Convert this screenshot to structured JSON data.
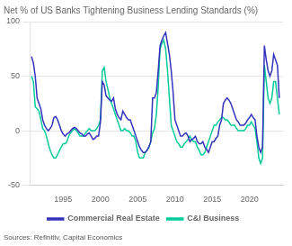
{
  "chart_data": {
    "type": "line",
    "title": "Net % of US Banks Tightening Business Lending Standards (%)",
    "annotations": [
      "Sources: Refinitiv, Capital Economics"
    ],
    "x": [
      1990.75,
      1991.0,
      1991.25,
      1991.5,
      1991.75,
      1992.0,
      1992.25,
      1992.5,
      1992.75,
      1993.0,
      1993.25,
      1993.5,
      1993.75,
      1994.0,
      1994.25,
      1994.5,
      1994.75,
      1995.0,
      1995.25,
      1995.5,
      1995.75,
      1996.0,
      1996.25,
      1996.5,
      1996.75,
      1997.0,
      1997.25,
      1997.5,
      1997.75,
      1998.0,
      1998.25,
      1998.5,
      1998.75,
      1999.0,
      1999.25,
      1999.5,
      1999.75,
      2000.0,
      2000.25,
      2000.5,
      2000.75,
      2001.0,
      2001.25,
      2001.5,
      2001.75,
      2002.0,
      2002.25,
      2002.5,
      2002.75,
      2003.0,
      2003.25,
      2003.5,
      2003.75,
      2004.0,
      2004.25,
      2004.5,
      2004.75,
      2005.0,
      2005.25,
      2005.5,
      2005.75,
      2006.0,
      2006.25,
      2006.5,
      2006.75,
      2007.0,
      2007.25,
      2007.5,
      2007.75,
      2008.0,
      2008.25,
      2008.5,
      2008.75,
      2009.0,
      2009.25,
      2009.5,
      2009.75,
      2010.0,
      2010.25,
      2010.5,
      2010.75,
      2011.0,
      2011.25,
      2011.5,
      2011.75,
      2012.0,
      2012.25,
      2012.5,
      2012.75,
      2013.0,
      2013.25,
      2013.5,
      2013.75,
      2014.0,
      2014.25,
      2014.5,
      2014.75,
      2015.0,
      2015.25,
      2015.5,
      2015.75,
      2016.0,
      2016.25,
      2016.5,
      2016.75,
      2017.0,
      2017.25,
      2017.5,
      2017.75,
      2018.0,
      2018.25,
      2018.5,
      2018.75,
      2019.0,
      2019.25,
      2019.5,
      2019.75,
      2020.0,
      2020.25,
      2020.5,
      2020.75,
      2021.0,
      2021.25,
      2021.5,
      2021.75,
      2022.0,
      2022.25,
      2022.5,
      2022.75,
      2023.0,
      2023.25,
      2023.5,
      2023.75,
      2024.0
    ],
    "series": [
      {
        "name": "Commercial Real Estate",
        "color": "#3333bb",
        "values": [
          68,
          62,
          50,
          30,
          25,
          20,
          10,
          5,
          2,
          0,
          2,
          5,
          12,
          13,
          10,
          5,
          0,
          -3,
          -5,
          -3,
          -2,
          0,
          2,
          3,
          2,
          0,
          -2,
          -3,
          -5,
          -5,
          -3,
          -2,
          -5,
          -8,
          -7,
          -5,
          -5,
          8,
          45,
          42,
          32,
          30,
          28,
          27,
          30,
          20,
          15,
          12,
          10,
          18,
          15,
          12,
          10,
          10,
          5,
          0,
          -5,
          -10,
          -15,
          -18,
          -20,
          -20,
          -18,
          -15,
          -10,
          30,
          30,
          35,
          55,
          78,
          83,
          87,
          90,
          80,
          70,
          55,
          35,
          10,
          5,
          0,
          -5,
          -5,
          -3,
          -2,
          -5,
          -10,
          -8,
          -7,
          -5,
          -10,
          -12,
          -12,
          -10,
          -15,
          -17,
          -20,
          -15,
          -10,
          -10,
          -7,
          -5,
          5,
          10,
          25,
          28,
          30,
          28,
          25,
          20,
          15,
          10,
          8,
          5,
          5,
          5,
          7,
          10,
          12,
          15,
          12,
          10,
          -5,
          -15,
          -20,
          -15,
          78,
          65,
          55,
          50,
          55,
          70,
          65,
          60,
          30
        ]
      },
      {
        "name": "C&I Business",
        "color": "#00cc99",
        "values": [
          50,
          45,
          22,
          20,
          18,
          10,
          2,
          0,
          -5,
          -12,
          -18,
          -22,
          -25,
          -25,
          -22,
          -18,
          -15,
          -12,
          -12,
          -10,
          -5,
          -2,
          0,
          2,
          0,
          -2,
          -5,
          -5,
          -5,
          -2,
          0,
          2,
          0,
          0,
          0,
          2,
          5,
          10,
          55,
          58,
          45,
          38,
          30,
          25,
          20,
          15,
          10,
          5,
          0,
          0,
          2,
          0,
          0,
          -2,
          -5,
          -5,
          -10,
          -20,
          -25,
          -25,
          -25,
          -20,
          -18,
          -15,
          -10,
          -2,
          2,
          15,
          40,
          75,
          80,
          83,
          75,
          55,
          30,
          5,
          0,
          -5,
          -10,
          -12,
          -15,
          -15,
          -12,
          -10,
          -8,
          -5,
          -8,
          -10,
          -10,
          -15,
          -18,
          -22,
          -22,
          -20,
          -15,
          -10,
          -5,
          0,
          5,
          5,
          8,
          10,
          12,
          12,
          10,
          10,
          8,
          5,
          5,
          5,
          2,
          0,
          0,
          0,
          0,
          2,
          5,
          5,
          8,
          5,
          2,
          -10,
          -25,
          -30,
          -25,
          60,
          45,
          30,
          25,
          30,
          45,
          45,
          30,
          15
        ]
      }
    ],
    "xlim": [
      1990.5,
      2024.5
    ],
    "xticks": [
      1995,
      2000,
      2005,
      2010,
      2015,
      2020
    ],
    "ylim": [
      -50,
      100
    ],
    "yticks": [
      -50,
      0,
      50,
      100
    ],
    "grid": "y",
    "legend": "bottom"
  }
}
